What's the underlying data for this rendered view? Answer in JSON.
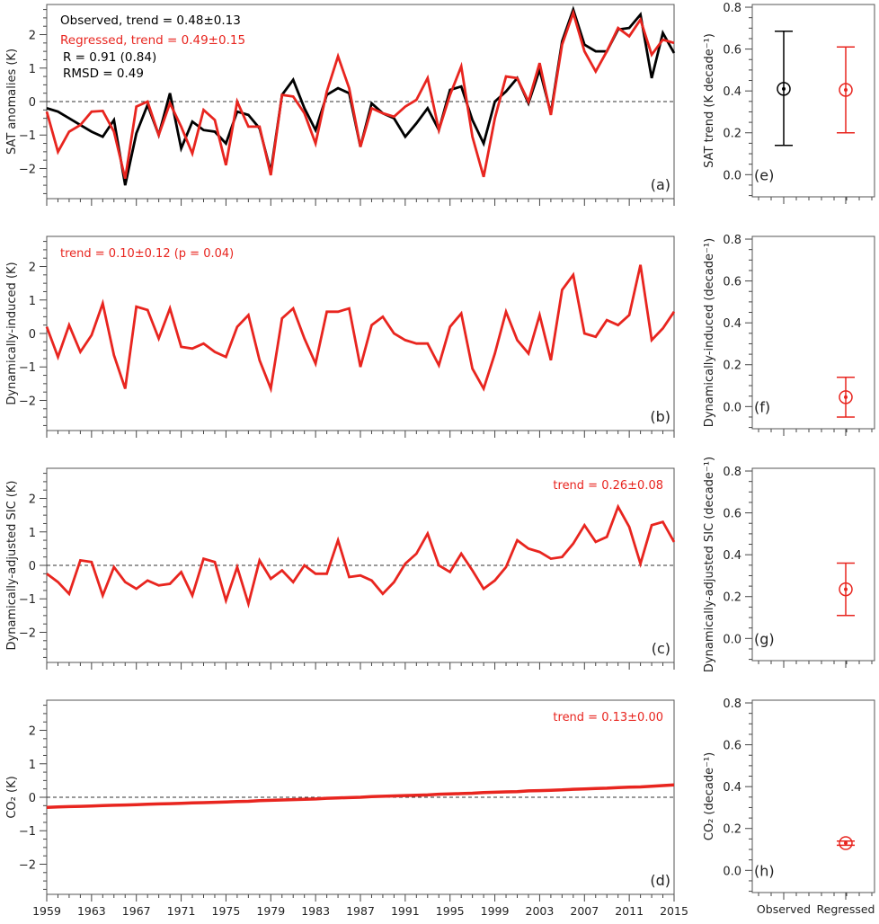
{
  "colors": {
    "observed": "#000000",
    "regressed": "#e8251f"
  },
  "chart_data": [
    {
      "type": "line",
      "panel_label": "(a)",
      "ylabel": "SAT anomalies (K)",
      "xlim": [
        1959,
        2015
      ],
      "ylim": [
        -2.9,
        2.9
      ],
      "xticks": [
        1959,
        1963,
        1967,
        1971,
        1975,
        1979,
        1983,
        1987,
        1991,
        1995,
        1999,
        2003,
        2007,
        2011,
        2015
      ],
      "yticks": [
        -2,
        -1,
        0,
        1,
        2
      ],
      "zero_line": true,
      "annotations": [
        {
          "text": "Observed, trend = 0.48±0.13",
          "color": "observed"
        },
        {
          "text": "Regressed, trend = 0.49±0.15",
          "color": "regressed"
        },
        {
          "text": "R = 0.91 (0.84)",
          "color": "observed"
        },
        {
          "text": "RMSD = 0.49",
          "color": "observed"
        }
      ],
      "series": [
        {
          "name": "Observed",
          "color": "observed",
          "values": [
            -0.2,
            -0.3,
            -0.5,
            -0.7,
            -0.9,
            -1.05,
            -0.55,
            -2.5,
            -0.95,
            -0.1,
            -1.0,
            0.25,
            -1.4,
            -0.6,
            -0.85,
            -0.9,
            -1.25,
            -0.3,
            -0.4,
            -0.8,
            -2.1,
            0.2,
            0.65,
            -0.2,
            -0.85,
            0.2,
            0.4,
            0.25,
            -1.35,
            -0.05,
            -0.35,
            -0.5,
            -1.05,
            -0.65,
            -0.2,
            -0.85,
            0.35,
            0.45,
            -0.55,
            -1.25,
            0.0,
            0.3,
            0.7,
            -0.05,
            0.95,
            -0.35,
            1.8,
            2.75,
            1.7,
            1.5,
            1.5,
            2.15,
            2.2,
            2.6,
            0.7,
            2.05,
            1.45
          ]
        },
        {
          "name": "Regressed",
          "color": "regressed",
          "values": [
            -0.3,
            -1.5,
            -0.9,
            -0.7,
            -0.3,
            -0.28,
            -0.9,
            -2.3,
            -0.15,
            0.0,
            -1.0,
            -0.05,
            -0.75,
            -1.55,
            -0.25,
            -0.55,
            -1.9,
            0.0,
            -0.75,
            -0.75,
            -2.2,
            0.2,
            0.15,
            -0.35,
            -1.25,
            0.3,
            1.35,
            0.4,
            -1.35,
            -0.2,
            -0.35,
            -0.45,
            -0.15,
            0.05,
            0.7,
            -0.85,
            0.2,
            1.05,
            -1.05,
            -2.25,
            -0.5,
            0.75,
            0.7,
            0.0,
            1.15,
            -0.4,
            1.7,
            2.65,
            1.5,
            0.9,
            1.5,
            2.2,
            1.95,
            2.45,
            1.4,
            1.85,
            1.75
          ]
        }
      ]
    },
    {
      "type": "line",
      "panel_label": "(b)",
      "ylabel": "Dynamically-induced (K)",
      "xlim": [
        1959,
        2015
      ],
      "ylim": [
        -2.9,
        2.9
      ],
      "yticks": [
        -2,
        -1,
        0,
        1,
        2
      ],
      "zero_line": false,
      "annotations": [
        {
          "text": "trend = 0.10±0.12 (p = 0.04)",
          "color": "regressed",
          "align": "left"
        }
      ],
      "series": [
        {
          "name": "Dynamically-induced",
          "color": "regressed",
          "values": [
            0.2,
            -0.7,
            0.25,
            -0.55,
            -0.05,
            0.9,
            -0.65,
            -1.65,
            0.8,
            0.7,
            -0.15,
            0.75,
            -0.4,
            -0.45,
            -0.3,
            -0.55,
            -0.7,
            0.2,
            0.55,
            -0.8,
            -1.65,
            0.45,
            0.75,
            -0.15,
            -0.9,
            0.65,
            0.65,
            0.75,
            -1.0,
            0.25,
            0.5,
            0.0,
            -0.2,
            -0.3,
            -0.3,
            -0.95,
            0.2,
            0.6,
            -1.05,
            -1.65,
            -0.6,
            0.65,
            -0.2,
            -0.6,
            0.55,
            -0.8,
            1.3,
            1.75,
            0.0,
            -0.1,
            0.4,
            0.25,
            0.55,
            2.05,
            -0.2,
            0.15,
            0.65
          ]
        }
      ]
    },
    {
      "type": "line",
      "panel_label": "(c)",
      "ylabel": "Dynamically-adjusted SIC (K)",
      "xlim": [
        1959,
        2015
      ],
      "ylim": [
        -2.9,
        2.9
      ],
      "yticks": [
        -2,
        -1,
        0,
        1,
        2
      ],
      "zero_line": true,
      "annotations": [
        {
          "text": "trend = 0.26±0.08",
          "color": "regressed",
          "align": "right"
        }
      ],
      "series": [
        {
          "name": "Dynamically-adjusted SIC",
          "color": "regressed",
          "values": [
            -0.25,
            -0.5,
            -0.85,
            0.15,
            0.1,
            -0.9,
            -0.05,
            -0.5,
            -0.7,
            -0.45,
            -0.6,
            -0.55,
            -0.2,
            -0.9,
            0.2,
            0.1,
            -1.05,
            -0.05,
            -1.15,
            0.15,
            -0.4,
            -0.15,
            -0.5,
            0.0,
            -0.25,
            -0.25,
            0.75,
            -0.35,
            -0.3,
            -0.45,
            -0.85,
            -0.5,
            0.05,
            0.35,
            0.95,
            0.0,
            -0.2,
            0.35,
            -0.15,
            -0.7,
            -0.45,
            -0.05,
            0.75,
            0.5,
            0.4,
            0.2,
            0.25,
            0.65,
            1.2,
            0.7,
            0.85,
            1.75,
            1.15,
            0.05,
            1.2,
            1.3,
            0.7
          ]
        }
      ]
    },
    {
      "type": "line",
      "panel_label": "(d)",
      "ylabel": "CO₂ (K)",
      "xlim": [
        1959,
        2015
      ],
      "ylim": [
        -2.9,
        2.9
      ],
      "yticks": [
        -2,
        -1,
        0,
        1,
        2
      ],
      "zero_line": true,
      "annotations": [
        {
          "text": "trend = 0.13±0.00",
          "color": "regressed",
          "align": "right"
        }
      ],
      "series": [
        {
          "name": "CO2",
          "color": "regressed",
          "values": [
            -0.3,
            -0.29,
            -0.28,
            -0.27,
            -0.26,
            -0.25,
            -0.24,
            -0.23,
            -0.22,
            -0.21,
            -0.2,
            -0.19,
            -0.18,
            -0.17,
            -0.16,
            -0.15,
            -0.14,
            -0.13,
            -0.12,
            -0.1,
            -0.09,
            -0.08,
            -0.07,
            -0.06,
            -0.05,
            -0.03,
            -0.02,
            -0.01,
            0.0,
            0.02,
            0.03,
            0.04,
            0.05,
            0.06,
            0.07,
            0.09,
            0.1,
            0.11,
            0.12,
            0.14,
            0.15,
            0.16,
            0.17,
            0.19,
            0.2,
            0.21,
            0.22,
            0.24,
            0.25,
            0.26,
            0.27,
            0.29,
            0.3,
            0.31,
            0.33,
            0.35,
            0.37
          ]
        }
      ]
    },
    {
      "type": "errorbar",
      "panel_label": "(e)",
      "ylabel": "SAT trend (K decade⁻¹)",
      "categories": [
        "Observed",
        "Regressed"
      ],
      "ylim": [
        -0.106,
        0.813
      ],
      "yticks": [
        0.0,
        0.2,
        0.4,
        0.6,
        0.8
      ],
      "points": [
        {
          "category": "Observed",
          "color": "observed",
          "value": 0.41,
          "low": 0.14,
          "high": 0.685
        },
        {
          "category": "Regressed",
          "color": "regressed",
          "value": 0.405,
          "low": 0.2,
          "high": 0.61
        }
      ]
    },
    {
      "type": "errorbar",
      "panel_label": "(f)",
      "ylabel": "Dynamically-induced (decade⁻¹)",
      "categories": [
        "Observed",
        "Regressed"
      ],
      "ylim": [
        -0.106,
        0.813
      ],
      "yticks": [
        0.0,
        0.2,
        0.4,
        0.6,
        0.8
      ],
      "points": [
        {
          "category": "Regressed",
          "color": "regressed",
          "value": 0.045,
          "low": -0.05,
          "high": 0.14
        }
      ]
    },
    {
      "type": "errorbar",
      "panel_label": "(g)",
      "ylabel": "Dynamically-adjusted SIC (decade⁻¹)",
      "categories": [
        "Observed",
        "Regressed"
      ],
      "ylim": [
        -0.106,
        0.813
      ],
      "yticks": [
        0.0,
        0.2,
        0.4,
        0.6,
        0.8
      ],
      "points": [
        {
          "category": "Regressed",
          "color": "regressed",
          "value": 0.235,
          "low": 0.11,
          "high": 0.36
        }
      ]
    },
    {
      "type": "errorbar",
      "panel_label": "(h)",
      "ylabel": "CO₂ (decade⁻¹)",
      "categories": [
        "Observed",
        "Regressed"
      ],
      "ylim": [
        -0.106,
        0.813
      ],
      "yticks": [
        0.0,
        0.2,
        0.4,
        0.6,
        0.8
      ],
      "show_category_labels": true,
      "points": [
        {
          "category": "Regressed",
          "color": "regressed",
          "value": 0.13,
          "low": 0.12,
          "high": 0.14
        }
      ]
    }
  ]
}
